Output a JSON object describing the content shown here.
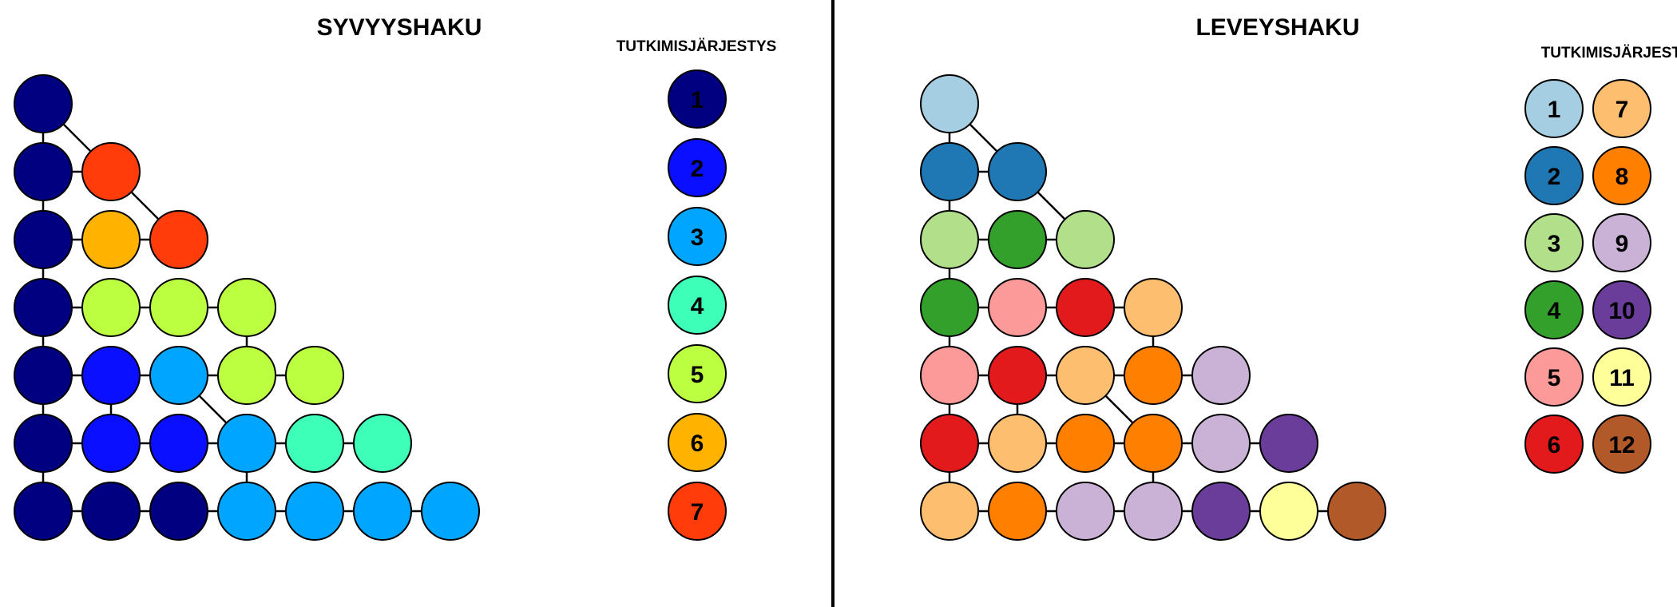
{
  "panels": [
    {
      "id": "dfs",
      "title": "SYVYYSHAKU",
      "legend_title": "TUTKIMISJÄRJESTYS",
      "legend": [
        {
          "label": "1",
          "color": "#000080"
        },
        {
          "label": "2",
          "color": "#0A0FFF"
        },
        {
          "label": "3",
          "color": "#00A5FF"
        },
        {
          "label": "4",
          "color": "#3DFFB8"
        },
        {
          "label": "5",
          "color": "#BBFF40"
        },
        {
          "label": "6",
          "color": "#FFB300"
        },
        {
          "label": "7",
          "color": "#FF3C0A"
        }
      ],
      "node_order": [
        [
          1
        ],
        [
          1,
          7
        ],
        [
          1,
          6,
          7
        ],
        [
          1,
          5,
          5,
          5
        ],
        [
          1,
          2,
          3,
          5,
          5
        ],
        [
          1,
          2,
          2,
          3,
          4,
          4
        ],
        [
          1,
          1,
          1,
          3,
          3,
          3,
          3
        ]
      ],
      "diagonal_edges": [
        {
          "from": [
            0,
            0
          ],
          "to": [
            1,
            1
          ]
        },
        {
          "from": [
            1,
            1
          ],
          "to": [
            2,
            2
          ]
        },
        {
          "from": [
            4,
            2
          ],
          "to": [
            5,
            3
          ]
        }
      ],
      "vertical_edges": [
        {
          "from": [
            0,
            0
          ],
          "to": [
            1,
            0
          ]
        },
        {
          "from": [
            1,
            0
          ],
          "to": [
            2,
            0
          ]
        },
        {
          "from": [
            2,
            0
          ],
          "to": [
            3,
            0
          ]
        },
        {
          "from": [
            3,
            0
          ],
          "to": [
            4,
            0
          ]
        },
        {
          "from": [
            4,
            0
          ],
          "to": [
            5,
            0
          ]
        },
        {
          "from": [
            5,
            0
          ],
          "to": [
            6,
            0
          ]
        },
        {
          "from": [
            3,
            3
          ],
          "to": [
            4,
            3
          ]
        },
        {
          "from": [
            4,
            1
          ],
          "to": [
            5,
            1
          ]
        },
        {
          "from": [
            5,
            3
          ],
          "to": [
            6,
            3
          ]
        }
      ]
    },
    {
      "id": "bfs",
      "title": "LEVEYSHAKU",
      "legend_title": "TUTKIMISJÄRJESTYS",
      "legend": [
        {
          "label": "1",
          "color": "#A6CEE3"
        },
        {
          "label": "2",
          "color": "#1F78B4"
        },
        {
          "label": "3",
          "color": "#B2DF8A"
        },
        {
          "label": "4",
          "color": "#33A02C"
        },
        {
          "label": "5",
          "color": "#FB9A99"
        },
        {
          "label": "6",
          "color": "#E31A1C"
        },
        {
          "label": "7",
          "color": "#FDBF6F"
        },
        {
          "label": "8",
          "color": "#FF7F00"
        },
        {
          "label": "9",
          "color": "#CAB2D6"
        },
        {
          "label": "10",
          "color": "#6A3D9A"
        },
        {
          "label": "11",
          "color": "#FFFF99"
        },
        {
          "label": "12",
          "color": "#B15928"
        }
      ],
      "node_order": [
        [
          1
        ],
        [
          2,
          2
        ],
        [
          3,
          4,
          3
        ],
        [
          4,
          5,
          6,
          7
        ],
        [
          5,
          6,
          7,
          8,
          9
        ],
        [
          6,
          7,
          8,
          8,
          9,
          10
        ],
        [
          7,
          8,
          9,
          9,
          10,
          11,
          12
        ]
      ],
      "diagonal_edges": [
        {
          "from": [
            0,
            0
          ],
          "to": [
            1,
            1
          ]
        },
        {
          "from": [
            1,
            1
          ],
          "to": [
            2,
            2
          ]
        },
        {
          "from": [
            4,
            2
          ],
          "to": [
            5,
            3
          ]
        }
      ],
      "vertical_edges": [
        {
          "from": [
            0,
            0
          ],
          "to": [
            1,
            0
          ]
        },
        {
          "from": [
            1,
            0
          ],
          "to": [
            2,
            0
          ]
        },
        {
          "from": [
            2,
            0
          ],
          "to": [
            3,
            0
          ]
        },
        {
          "from": [
            3,
            0
          ],
          "to": [
            4,
            0
          ]
        },
        {
          "from": [
            4,
            0
          ],
          "to": [
            5,
            0
          ]
        },
        {
          "from": [
            5,
            0
          ],
          "to": [
            6,
            0
          ]
        },
        {
          "from": [
            3,
            3
          ],
          "to": [
            4,
            3
          ]
        },
        {
          "from": [
            4,
            1
          ],
          "to": [
            5,
            1
          ]
        },
        {
          "from": [
            5,
            3
          ],
          "to": [
            6,
            3
          ]
        }
      ]
    }
  ]
}
